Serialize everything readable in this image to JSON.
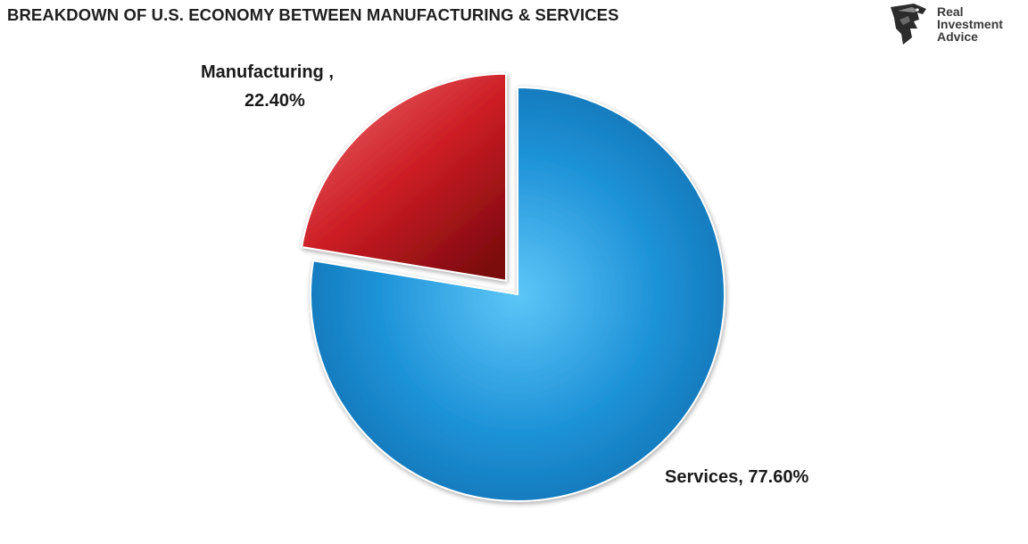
{
  "chart_data": {
    "type": "pie",
    "title": "BREAKDOWN OF U.S. ECONOMY BETWEEN MANUFACTURING & SERVICES",
    "slices": [
      {
        "name": "Services",
        "value": 77.6,
        "label_text": "Services, 77.60%",
        "color": "#1b8fd6"
      },
      {
        "name": "Manufacturing",
        "value": 22.4,
        "label_lines": [
          "Manufacturing ,",
          "22.40%"
        ],
        "color": "#c8161d",
        "exploded": true
      }
    ],
    "legend": "none"
  },
  "logo": {
    "line1": "Real",
    "line2": "Investment",
    "line3": "Advice"
  }
}
